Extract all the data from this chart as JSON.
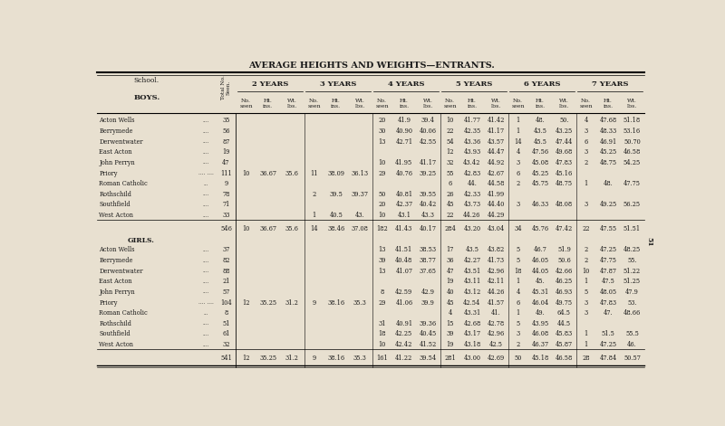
{
  "title": "AVERAGE HEIGHTS AND WEIGHTS—ENTRANTS.",
  "bg_color": "#e8e0d0",
  "title_color": "#1a1a1a",
  "page_number": "51",
  "boys_data": [
    [
      "Acton Wells",
      "....",
      "35",
      "",
      "",
      "",
      "",
      "",
      "",
      "20",
      "41.9",
      "39.4",
      "10",
      "41.77",
      "41.42",
      "1",
      "48.",
      "50.",
      "4",
      "47.68",
      "51.18"
    ],
    [
      "Berrymede",
      "....",
      "56",
      "",
      "",
      "",
      "",
      "",
      "",
      "30",
      "40.90",
      "40.06",
      "22",
      "42.35",
      "41.17",
      "1",
      "43.5",
      "43.25",
      "3",
      "48.33",
      "53.16"
    ],
    [
      "Derwentwater",
      "....",
      "87",
      "",
      "",
      "",
      "",
      "",
      "",
      "13",
      "42.71",
      "42.55",
      "54",
      "43.36",
      "43.57",
      "14",
      "45.5",
      "47.44",
      "6",
      "46.91",
      "50.70"
    ],
    [
      "East Acton",
      "....",
      "19",
      "",
      "",
      "",
      "",
      "",
      "",
      "",
      "",
      "",
      "12",
      "43.93",
      "44.47",
      "4",
      "47.56",
      "49.68",
      "3",
      "45.25",
      "46.58"
    ],
    [
      "John Perryn",
      "....",
      "47",
      "",
      "",
      "",
      "",
      "",
      "",
      "10",
      "41.95",
      "41.17",
      "32",
      "43.42",
      "44.92",
      "3",
      "45.08",
      "47.83",
      "2",
      "48.75",
      "54.25"
    ],
    [
      "Priory",
      ".... ....",
      "111",
      "10",
      "36.67",
      "35.6",
      "11",
      "38.09",
      "36.13",
      "29",
      "40.76",
      "39.25",
      "55",
      "42.83",
      "42.67",
      "6",
      "45.25",
      "45.16",
      "",
      "",
      ""
    ],
    [
      "Roman Catholic",
      "...",
      "9",
      "",
      "",
      "",
      "",
      "",
      "",
      "",
      "",
      "",
      "6",
      "44.",
      "44.58",
      "2",
      "45.75",
      "48.75",
      "1",
      "48.",
      "47.75"
    ],
    [
      "Rothschild",
      "....",
      "78",
      "",
      "",
      "",
      "2",
      "39.5",
      "39.37",
      "50",
      "40.81",
      "39.55",
      "26",
      "42.33",
      "41.99",
      "",
      "",
      "",
      "",
      "",
      ""
    ],
    [
      "Southfield",
      "....",
      "71",
      "",
      "",
      "",
      "",
      "",
      "",
      "20",
      "42.37",
      "40.42",
      "45",
      "43.73",
      "44.40",
      "3",
      "46.33",
      "48.08",
      "3",
      "49.25",
      "56.25"
    ],
    [
      "West Acton",
      "....",
      "33",
      "",
      "",
      "",
      "1",
      "40.5",
      "43.",
      "10",
      "43.1",
      "43.3",
      "22",
      "44.26",
      "44.29",
      "",
      "",
      "",
      "",
      "",
      ""
    ]
  ],
  "boys_total": [
    "546",
    "10",
    "36.67",
    "35.6",
    "14",
    "38.46",
    "37.08",
    "182",
    "41.43",
    "40.17",
    "284",
    "43.20",
    "43.04",
    "34",
    "45.76",
    "47.42",
    "22",
    "47.55",
    "51.51"
  ],
  "girls_header": "GIRLS.",
  "girls_data": [
    [
      "Acton Wells",
      "....",
      "37",
      "",
      "",
      "",
      "",
      "",
      "",
      "13",
      "41.51",
      "38.53",
      "17",
      "43.5",
      "43.82",
      "5",
      "46.7",
      "51.9",
      "2",
      "47.25",
      "48.25"
    ],
    [
      "Berrymede",
      "....",
      "82",
      "",
      "",
      "",
      "",
      "",
      "",
      "39",
      "40.48",
      "38.77",
      "36",
      "42.27",
      "41.73",
      "5",
      "46.05",
      "50.6",
      "2",
      "47.75",
      "55."
    ],
    [
      "Derwentwater",
      "....",
      "88",
      "",
      "",
      "",
      "",
      "",
      "",
      "13",
      "41.07",
      "37.65",
      "47",
      "43.51",
      "42.96",
      "18",
      "44.05",
      "42.66",
      "10",
      "47.87",
      "51.22"
    ],
    [
      "East Acton",
      "....",
      "21",
      "",
      "",
      "",
      "",
      "",
      "",
      "",
      "",
      "",
      "19",
      "43.11",
      "42.11",
      "1",
      "45.",
      "46.25",
      "1",
      "47.5",
      "51.25"
    ],
    [
      "John Perryn",
      "....",
      "57",
      "",
      "",
      "",
      "",
      "",
      "",
      "8",
      "42.59",
      "42.9",
      "40",
      "43.12",
      "44.26",
      "4",
      "45.31",
      "46.93",
      "5",
      "48.05",
      "47.9"
    ],
    [
      "Priory",
      ".... ....",
      "104",
      "12",
      "35.25",
      "31.2",
      "9",
      "38.16",
      "35.3",
      "29",
      "41.06",
      "39.9",
      "45",
      "42.54",
      "41.57",
      "6",
      "46.04",
      "49.75",
      "3",
      "47.83",
      "53."
    ],
    [
      "Roman Catholic",
      "...",
      "8",
      "",
      "",
      "",
      "",
      "",
      "",
      "",
      "",
      "",
      "4",
      "43.31",
      "41.",
      "1",
      "49.",
      "64.5",
      "3",
      "47.",
      "48.66"
    ],
    [
      "Rothschild",
      "....",
      "51",
      "",
      "",
      "",
      "",
      "",
      "",
      "31",
      "40.91",
      "39.36",
      "15",
      "42.68",
      "42.78",
      "5",
      "43.95",
      "44.5",
      "",
      "",
      ""
    ],
    [
      "Southfield",
      "....",
      "61",
      "",
      "",
      "",
      "",
      "",
      "",
      "18",
      "42.25",
      "40.45",
      "39",
      "43.17",
      "42.96",
      "3",
      "46.08",
      "45.83",
      "1",
      "51.5",
      "55.5"
    ],
    [
      "West Acton",
      "....",
      "32",
      "",
      "",
      "",
      "",
      "",
      "",
      "10",
      "42.42",
      "41.52",
      "19",
      "43.18",
      "42.5",
      "2",
      "46.37",
      "45.87",
      "1",
      "47.25",
      "46."
    ]
  ],
  "girls_total": [
    "541",
    "12",
    "35.25",
    "31.2",
    "9",
    "38.16",
    "35.3",
    "161",
    "41.22",
    "39.54",
    "281",
    "43.00",
    "42.69",
    "50",
    "45.18",
    "46.58",
    "28",
    "47.84",
    "50.57"
  ],
  "group_labels": [
    "2 YEARS",
    "3 YEARS",
    "4 YEARS",
    "5 YEARS",
    "6 YEARS",
    "7 YEARS"
  ],
  "sub_labels": [
    "No.\nseen",
    "Ht.\nins.",
    "Wt.\nlbs."
  ]
}
